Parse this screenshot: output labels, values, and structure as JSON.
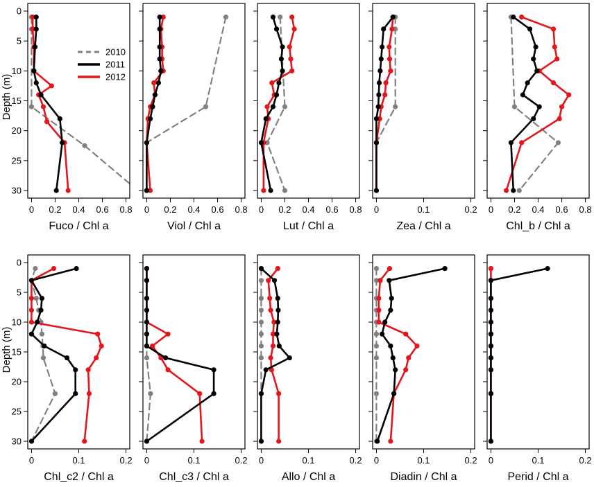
{
  "figure": {
    "ylabel_top": "Depth (m)",
    "ylabel_bottom": "Depth (m)"
  },
  "legend": {
    "entries": [
      {
        "label": "2010",
        "series": "y2010"
      },
      {
        "label": "2011",
        "series": "y2011"
      },
      {
        "label": "2012",
        "series": "y2012"
      }
    ]
  },
  "styles": {
    "y2010": {
      "color": "#808080",
      "dash": true
    },
    "y2011": {
      "color": "#000000",
      "dash": false
    },
    "y2012": {
      "color": "#e4151b",
      "dash": false
    }
  },
  "chart_data": [
    {
      "type": "line",
      "title": "",
      "xlabel": "Fuco  / Chl a",
      "ylabel": "Depth (m)",
      "xlim": [
        0,
        0.8
      ],
      "ylim": [
        30,
        0
      ],
      "xticks": [
        0,
        0.2,
        0.4,
        0.6,
        0.8
      ],
      "xtick_labels": [
        "0",
        "0.2",
        "0.4",
        "0.6",
        "0.8"
      ],
      "yticks": [
        0,
        5,
        10,
        15,
        20,
        25,
        30
      ],
      "ytick_labels": [
        "0",
        "5",
        "10",
        "15",
        "20",
        "25",
        "30"
      ],
      "series": [
        {
          "name": "2010",
          "key": "y2010",
          "x": [
            0.0,
            0.0,
            0.0,
            0.45,
            0.84
          ],
          "y": [
            1,
            3,
            16,
            22.5,
            29
          ],
          "markers": [
            true,
            true,
            true,
            true,
            false
          ]
        },
        {
          "name": "2011",
          "key": "y2011",
          "x": [
            0.04,
            0.04,
            0.03,
            0.02,
            0.04,
            0.08,
            0.24,
            0.26,
            0.21
          ],
          "y": [
            1,
            3,
            6,
            10,
            12,
            14,
            18,
            22,
            30
          ]
        },
        {
          "name": "2012",
          "key": "y2012",
          "x": [
            0.01,
            0.01,
            0.02,
            0.02,
            0.17,
            0.06,
            0.1,
            0.13,
            0.28,
            0.31
          ],
          "y": [
            1,
            3,
            6,
            10,
            12.5,
            14,
            16,
            18.5,
            22,
            30
          ]
        }
      ]
    },
    {
      "type": "line",
      "title": "",
      "xlabel": "Viol  / Chl a",
      "ylabel": "",
      "xlim": [
        0,
        0.8
      ],
      "ylim": [
        30,
        0
      ],
      "xticks": [
        0,
        0.2,
        0.4,
        0.6,
        0.8
      ],
      "xtick_labels": [
        "0",
        "0.2",
        "0.4",
        "0.6",
        "0.8"
      ],
      "yticks": [
        0,
        5,
        10,
        15,
        20,
        25,
        30
      ],
      "ytick_labels": [],
      "series": [
        {
          "name": "2010",
          "key": "y2010",
          "x": [
            0.67,
            0.5,
            0.0,
            0.0
          ],
          "y": [
            1,
            16,
            22,
            30
          ]
        },
        {
          "name": "2011",
          "key": "y2011",
          "x": [
            0.11,
            0.11,
            0.11,
            0.11,
            0.12,
            0.1,
            0.07,
            0.05,
            0.03,
            0.0,
            0.0
          ],
          "y": [
            1,
            3,
            6,
            8,
            10,
            12,
            14,
            16,
            18,
            22,
            30
          ]
        },
        {
          "name": "2012",
          "key": "y2012",
          "x": [
            0.14,
            0.12,
            0.13,
            0.13,
            0.14,
            0.06,
            0.07,
            0.03,
            0.01,
            0.0,
            0.03
          ],
          "y": [
            1,
            3,
            6,
            8,
            10,
            12,
            14,
            16,
            18,
            22,
            30
          ]
        }
      ]
    },
    {
      "type": "line",
      "title": "",
      "xlabel": "Lut  / Chl a",
      "ylabel": "",
      "xlim": [
        0,
        0.8
      ],
      "ylim": [
        30,
        0
      ],
      "xticks": [
        0,
        0.2,
        0.4,
        0.6,
        0.8
      ],
      "xtick_labels": [
        "0",
        "0.2",
        "0.4",
        "0.6",
        "0.8"
      ],
      "yticks": [
        0,
        5,
        10,
        15,
        20,
        25,
        30
      ],
      "ytick_labels": [],
      "series": [
        {
          "name": "2010",
          "key": "y2010",
          "x": [
            0.16,
            0.2,
            0.05,
            0.2
          ],
          "y": [
            1,
            16,
            22,
            30
          ]
        },
        {
          "name": "2011",
          "key": "y2011",
          "x": [
            0.1,
            0.13,
            0.18,
            0.17,
            0.18,
            0.15,
            0.13,
            0.1,
            0.04,
            0.0,
            0.08
          ],
          "y": [
            1,
            3,
            6,
            8,
            10,
            12,
            14,
            16,
            18,
            22,
            30
          ]
        },
        {
          "name": "2012",
          "key": "y2012",
          "x": [
            0.26,
            0.28,
            0.24,
            0.25,
            0.26,
            0.09,
            0.11,
            0.05,
            0.06,
            0.02,
            0.02
          ],
          "y": [
            1,
            3,
            6,
            8,
            10,
            12,
            14,
            16,
            18,
            22,
            30
          ]
        }
      ]
    },
    {
      "type": "line",
      "title": "",
      "xlabel": "Zea  / Chl a",
      "ylabel": "",
      "xlim": [
        0,
        0.2
      ],
      "ylim": [
        30,
        0
      ],
      "xticks": [
        0,
        0.1,
        0.2
      ],
      "xtick_labels": [
        "0",
        "0.1",
        "0.2"
      ],
      "yticks": [
        0,
        5,
        10,
        15,
        20,
        25,
        30
      ],
      "ytick_labels": [],
      "series": [
        {
          "name": "2010",
          "key": "y2010",
          "x": [
            0.04,
            0.04,
            0.04,
            0.0,
            0.0
          ],
          "y": [
            1,
            3,
            16,
            22,
            30
          ]
        },
        {
          "name": "2011",
          "key": "y2011",
          "x": [
            0.035,
            0.015,
            0.012,
            0.01,
            0.008,
            0.006,
            0.005,
            0.004,
            0.0,
            0.0,
            0.0
          ],
          "y": [
            1,
            3,
            6,
            8,
            10,
            12,
            14,
            16,
            18,
            22,
            30
          ]
        },
        {
          "name": "2012",
          "key": "y2012",
          "x": [
            0.035,
            0.033,
            0.027,
            0.028,
            0.03,
            0.02,
            0.018,
            0.01,
            0.007,
            0.0,
            0.0
          ],
          "y": [
            1,
            3,
            6,
            8,
            10,
            12,
            14,
            16,
            18,
            22,
            30
          ]
        }
      ]
    },
    {
      "type": "line",
      "title": "",
      "xlabel": "Chl_b  / Chl a",
      "ylabel": "",
      "xlim": [
        0,
        0.8
      ],
      "ylim": [
        30,
        0
      ],
      "xticks": [
        0,
        0.2,
        0.4,
        0.6,
        0.8
      ],
      "xtick_labels": [
        "0",
        "0.2",
        "0.4",
        "0.6",
        "0.8"
      ],
      "yticks": [
        0,
        5,
        10,
        15,
        20,
        25,
        30
      ],
      "ytick_labels": [],
      "series": [
        {
          "name": "2010",
          "key": "y2010",
          "x": [
            0.17,
            0.2,
            0.57,
            0.24
          ],
          "y": [
            1,
            16,
            22,
            30
          ]
        },
        {
          "name": "2011",
          "key": "y2011",
          "x": [
            0.19,
            0.33,
            0.38,
            0.36,
            0.39,
            0.31,
            0.27,
            0.41,
            0.36,
            0.17,
            0.19
          ],
          "y": [
            1,
            3,
            6,
            8,
            10,
            12,
            14,
            16,
            18,
            22,
            30
          ]
        },
        {
          "name": "2012",
          "key": "y2012",
          "x": [
            0.26,
            0.53,
            0.54,
            0.56,
            0.41,
            0.53,
            0.66,
            0.6,
            0.58,
            0.26,
            0.13
          ],
          "y": [
            1,
            3,
            6,
            8,
            10,
            12,
            14,
            16,
            18,
            22,
            30
          ]
        }
      ]
    },
    {
      "type": "line",
      "title": "",
      "xlabel": "Chl_c2  / Chl a",
      "ylabel": "Depth (m)",
      "xlim": [
        0,
        0.2
      ],
      "ylim": [
        30,
        0
      ],
      "xticks": [
        0,
        0.1,
        0.2
      ],
      "xtick_labels": [
        "0",
        "0.1",
        "0.2"
      ],
      "yticks": [
        0,
        5,
        10,
        15,
        20,
        25,
        30
      ],
      "ytick_labels": [
        "0",
        "5",
        "10",
        "15",
        "20",
        "25",
        "30"
      ],
      "series": [
        {
          "name": "2010",
          "key": "y2010",
          "x": [
            0.008,
            0.0,
            0.01,
            0.015,
            0.02,
            0.022,
            0.024,
            0.025,
            0.05,
            0.0
          ],
          "y": [
            1,
            3,
            6,
            8,
            10,
            12,
            14,
            16,
            22,
            30
          ]
        },
        {
          "name": "2011",
          "key": "y2011",
          "x": [
            0.095,
            0.0,
            0.022,
            0.02,
            0.012,
            0.0,
            0.027,
            0.075,
            0.093,
            0.093,
            0.0
          ],
          "y": [
            1,
            3,
            6,
            8,
            10,
            12,
            14,
            16,
            18,
            22,
            30
          ]
        },
        {
          "name": "2012",
          "key": "y2012",
          "x": [
            0.047,
            0.0,
            0.0,
            0.0,
            0.0,
            0.14,
            0.148,
            0.137,
            0.12,
            0.122,
            0.112
          ],
          "y": [
            1,
            3,
            6,
            8,
            10,
            12,
            14,
            16,
            18,
            22,
            30
          ]
        }
      ]
    },
    {
      "type": "line",
      "title": "",
      "xlabel": "Chl_c3  / Chl a",
      "ylabel": "",
      "xlim": [
        0,
        0.2
      ],
      "ylim": [
        30,
        0
      ],
      "xticks": [
        0,
        0.1,
        0.2
      ],
      "xtick_labels": [
        "0",
        "0.1",
        "0.2"
      ],
      "yticks": [
        0,
        5,
        10,
        15,
        20,
        25,
        30
      ],
      "ytick_labels": [],
      "series": [
        {
          "name": "2010",
          "key": "y2010",
          "x": [
            0.0,
            0.0,
            0.0,
            0.0,
            0.0,
            0.0,
            0.0,
            0.0,
            0.008,
            0.0
          ],
          "y": [
            1,
            3,
            6,
            8,
            10,
            12,
            14,
            16,
            22,
            30
          ]
        },
        {
          "name": "2011",
          "key": "y2011",
          "x": [
            0.0,
            0.0,
            0.0,
            0.0,
            0.0,
            0.0,
            0.0,
            0.04,
            0.142,
            0.142,
            0.0
          ],
          "y": [
            1,
            3,
            6,
            8,
            10,
            12,
            14,
            16,
            18,
            22,
            30
          ]
        },
        {
          "name": "2012",
          "key": "y2012",
          "x": [
            0.0,
            0.0,
            0.0,
            0.0,
            0.0,
            0.045,
            0.012,
            0.03,
            0.045,
            0.112,
            0.117
          ],
          "y": [
            1,
            3,
            6,
            8,
            10,
            12,
            14,
            16,
            18,
            22,
            30
          ]
        }
      ]
    },
    {
      "type": "line",
      "title": "",
      "xlabel": "Allo  / Chl a",
      "ylabel": "",
      "xlim": [
        0,
        0.2
      ],
      "ylim": [
        30,
        0
      ],
      "xticks": [
        0,
        0.1,
        0.2
      ],
      "xtick_labels": [
        "0",
        "0.1",
        "0.2"
      ],
      "yticks": [
        0,
        5,
        10,
        15,
        20,
        25,
        30
      ],
      "ytick_labels": [],
      "series": [
        {
          "name": "2010",
          "key": "y2010",
          "x": [
            0.0,
            0.0,
            0.0,
            0.0,
            0.0,
            0.0,
            0.0,
            0.0,
            0.0,
            0.0
          ],
          "y": [
            1,
            3,
            6,
            8,
            10,
            12,
            14,
            16,
            22,
            30
          ]
        },
        {
          "name": "2011",
          "key": "y2011",
          "x": [
            0.0,
            0.028,
            0.035,
            0.036,
            0.035,
            0.033,
            0.038,
            0.06,
            0.01,
            0.0,
            0.0
          ],
          "y": [
            1,
            3,
            6,
            8,
            10,
            12,
            14,
            16,
            18,
            22,
            30
          ]
        },
        {
          "name": "2012",
          "key": "y2012",
          "x": [
            0.035,
            0.015,
            0.018,
            0.02,
            0.027,
            0.025,
            0.025,
            0.02,
            0.022,
            0.037,
            0.037
          ],
          "y": [
            1,
            3,
            6,
            8,
            10,
            12,
            14,
            16,
            18,
            22,
            30
          ]
        }
      ]
    },
    {
      "type": "line",
      "title": "",
      "xlabel": "Diadin  / Chl a",
      "ylabel": "",
      "xlim": [
        0,
        0.2
      ],
      "ylim": [
        30,
        0
      ],
      "xticks": [
        0,
        0.1,
        0.2
      ],
      "xtick_labels": [
        "0",
        "0.1",
        "0.2"
      ],
      "yticks": [
        0,
        5,
        10,
        15,
        20,
        25,
        30
      ],
      "ytick_labels": [],
      "series": [
        {
          "name": "2010",
          "key": "y2010",
          "x": [
            0.0,
            0.0,
            0.0,
            0.0,
            0.0,
            0.0,
            0.0,
            0.0,
            0.0,
            0.0
          ],
          "y": [
            1,
            3,
            6,
            8,
            10,
            12,
            14,
            16,
            22,
            30
          ]
        },
        {
          "name": "2011",
          "key": "y2011",
          "x": [
            0.145,
            0.027,
            0.032,
            0.03,
            0.018,
            0.012,
            0.03,
            0.035,
            0.04,
            0.037,
            0.002
          ],
          "y": [
            1,
            3,
            6,
            8,
            10,
            12,
            14,
            16,
            18,
            22,
            30
          ]
        },
        {
          "name": "2012",
          "key": "y2012",
          "x": [
            0.028,
            0.008,
            0.005,
            0.005,
            0.005,
            0.062,
            0.086,
            0.068,
            0.062,
            0.037,
            0.03
          ],
          "y": [
            1,
            3,
            6,
            8,
            10,
            12,
            14,
            16,
            18,
            22,
            30
          ]
        }
      ]
    },
    {
      "type": "line",
      "title": "",
      "xlabel": "Perid  / Chl a",
      "ylabel": "",
      "xlim": [
        0,
        0.2
      ],
      "ylim": [
        30,
        0
      ],
      "xticks": [
        0,
        0.1,
        0.2
      ],
      "xtick_labels": [
        "0",
        "0.1",
        "0.2"
      ],
      "yticks": [
        0,
        5,
        10,
        15,
        20,
        25,
        30
      ],
      "ytick_labels": [],
      "series": [
        {
          "name": "2010",
          "key": "y2010",
          "x": [
            0.0,
            0.0,
            0.0,
            0.0,
            0.0,
            0.0,
            0.0,
            0.0,
            0.0,
            0.0
          ],
          "y": [
            1,
            3,
            6,
            8,
            10,
            12,
            14,
            16,
            22,
            30
          ]
        },
        {
          "name": "2011",
          "key": "y2011",
          "x": [
            0.12,
            0.0,
            0.0,
            0.0,
            0.0,
            0.0,
            0.0,
            0.0,
            0.0,
            0.0,
            0.0
          ],
          "y": [
            1,
            3,
            6,
            8,
            10,
            12,
            14,
            16,
            18,
            22,
            30
          ]
        },
        {
          "name": "2012",
          "key": "y2012",
          "x": [
            0.0,
            0.0,
            0.0,
            0.0,
            0.0,
            0.0,
            0.0,
            0.0,
            0.0,
            0.0,
            0.0
          ],
          "y": [
            1,
            3,
            6,
            8,
            10,
            12,
            14,
            16,
            18,
            22,
            30
          ]
        }
      ]
    }
  ]
}
